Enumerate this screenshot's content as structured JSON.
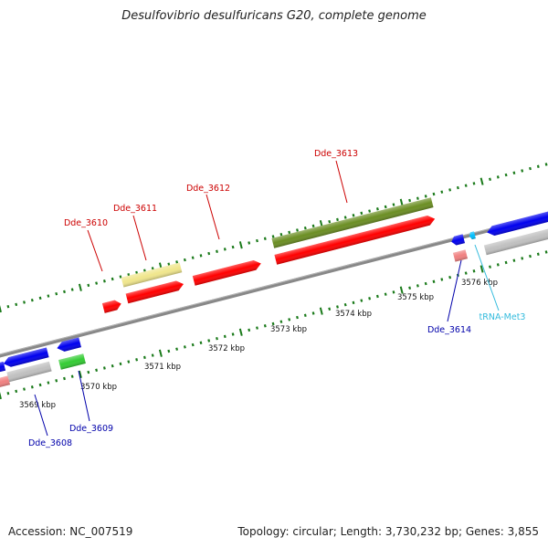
{
  "title": "Desulfovibrio desulfuricans G20, complete genome",
  "footer": {
    "accession": "Accession: NC_007519",
    "topology": "Topology: circular; Length: 3,730,232 bp; Genes: 3,855"
  },
  "colors": {
    "forward_gene": "#ff0000",
    "reverse_gene": "#0000ee",
    "pseudo_forward": "#f08080",
    "grey_rna": "#c0c0c0",
    "olive": "#6b8e23",
    "khaki": "#f0e68c",
    "green": "#33cc33",
    "trna": "#00bfff",
    "tick": "#1a7a1a",
    "backbone": "#888888",
    "label_red": "#cc0000",
    "label_blue": "#0000aa",
    "label_cyan": "#33bbdd"
  },
  "scale_labels": [
    "3569 kbp",
    "3570 kbp",
    "3571 kbp",
    "3572 kbp",
    "3573 kbp",
    "3574 kbp",
    "3575 kbp",
    "3576 kbp"
  ],
  "gene_labels": [
    {
      "id": "dde3608",
      "text": "Dde_3608",
      "color": "label_blue"
    },
    {
      "id": "dde3609",
      "text": "Dde_3609",
      "color": "label_blue"
    },
    {
      "id": "dde3610",
      "text": "Dde_3610",
      "color": "label_red"
    },
    {
      "id": "dde3611",
      "text": "Dde_3611",
      "color": "label_red"
    },
    {
      "id": "dde3612",
      "text": "Dde_3612",
      "color": "label_red"
    },
    {
      "id": "dde3613",
      "text": "Dde_3613",
      "color": "label_red"
    },
    {
      "id": "dde3614",
      "text": "Dde_3614",
      "color": "label_blue"
    },
    {
      "id": "trnamet3",
      "text": "tRNA-Met3",
      "color": "label_cyan"
    }
  ]
}
